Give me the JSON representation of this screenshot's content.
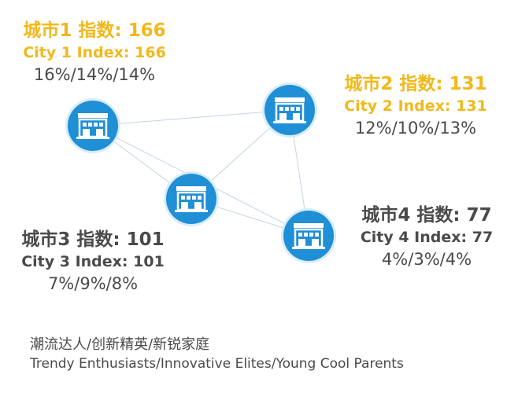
{
  "colors": {
    "node_fill": "#1f8fd6",
    "node_ring": "#d8ecf8",
    "highlight_text": "#f2b81b",
    "normal_text": "#4a4a4a",
    "link_line": "#c4d4e0"
  },
  "cities": [
    {
      "zh_label": "城市1 指数: 166",
      "en_label": "City 1 Index: 166",
      "percentages": "16%/14%/14%",
      "highlight": true,
      "icon": "store-icon"
    },
    {
      "zh_label": "城市2 指数: 131",
      "en_label": "City 2 Index: 131",
      "percentages": "12%/10%/13%",
      "highlight": true,
      "icon": "store-icon"
    },
    {
      "zh_label": "城市3 指数: 101",
      "en_label": "City 3 Index: 101",
      "percentages": "7%/9%/8%",
      "highlight": false,
      "icon": "store-icon"
    },
    {
      "zh_label": "城市4 指数: 77",
      "en_label": "City 4 Index: 77",
      "percentages": "4%/3%/4%",
      "highlight": false,
      "icon": "store-icon"
    }
  ],
  "links": [
    [
      "city1",
      "city2"
    ],
    [
      "city1",
      "city3"
    ],
    [
      "city1",
      "city4"
    ],
    [
      "city2",
      "city3"
    ],
    [
      "city2",
      "city4"
    ],
    [
      "city3",
      "city4"
    ]
  ],
  "caption": {
    "zh": "潮流达人/创新精英/新锐家庭",
    "en": "Trendy Enthusiasts/Innovative Elites/Young Cool Parents"
  }
}
